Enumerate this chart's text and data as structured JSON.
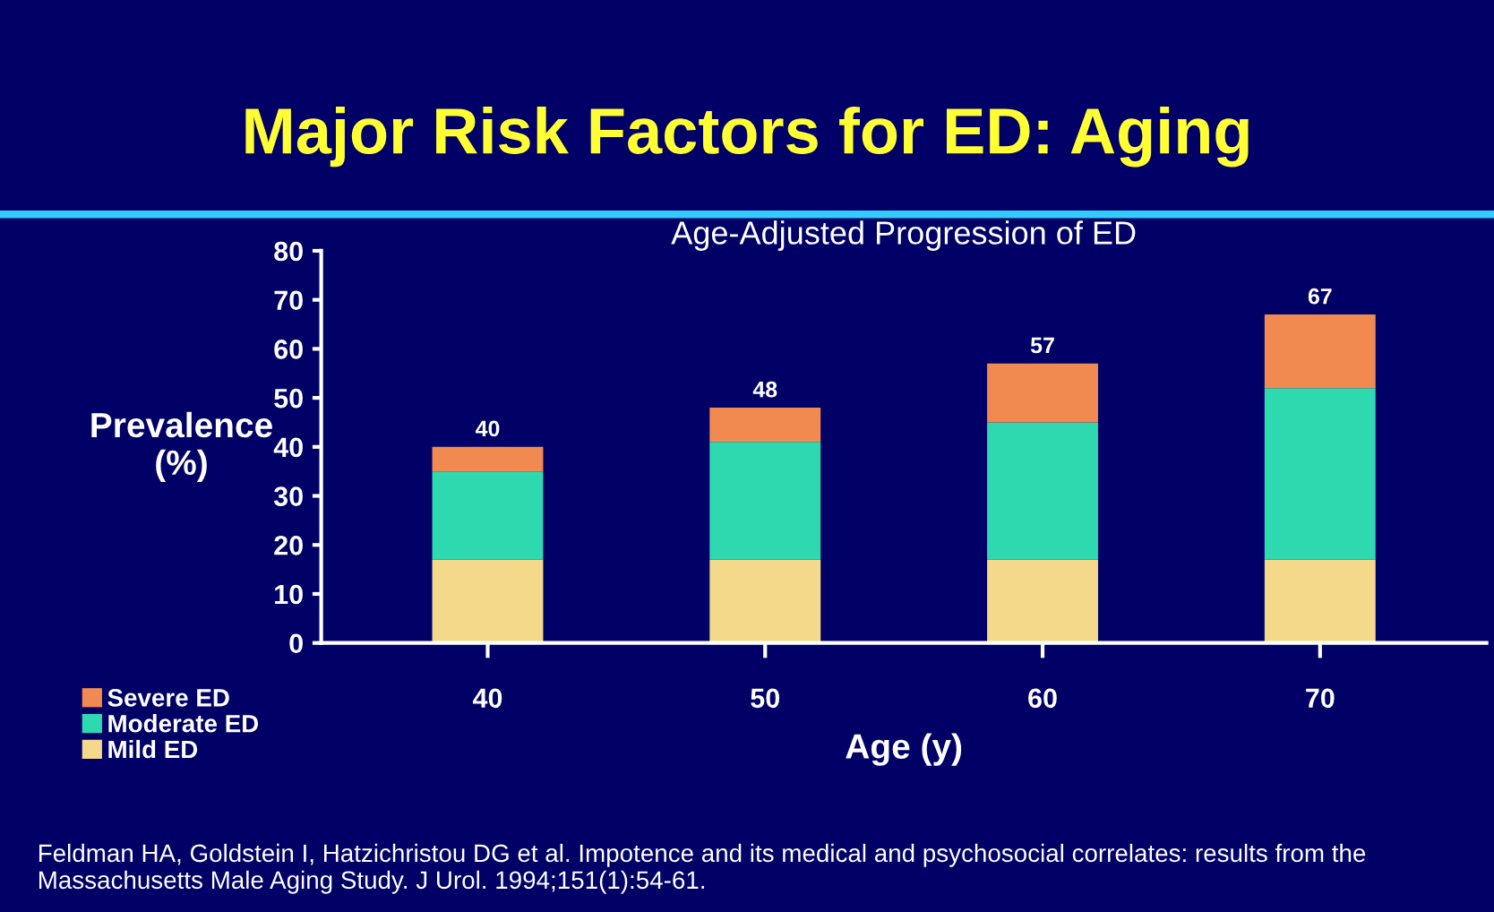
{
  "chart_data": {
    "type": "bar",
    "stacked": true,
    "title": "Major Risk Factors for ED: Aging",
    "subtitle": "Age-Adjusted Progression of ED",
    "xlabel": "Age (y)",
    "ylabel": "Prevalence\n(%)",
    "categories": [
      "40",
      "50",
      "60",
      "70"
    ],
    "series": [
      {
        "name": "Mild ED",
        "color": "#f5d98a",
        "values": [
          17,
          17,
          17,
          17
        ]
      },
      {
        "name": "Moderate ED",
        "color": "#2fd9b0",
        "values": [
          18,
          24,
          28,
          35
        ]
      },
      {
        "name": "Severe ED",
        "color": "#f08a50",
        "values": [
          5,
          7,
          12,
          15
        ]
      }
    ],
    "totals": [
      "40",
      "48",
      "57",
      "67"
    ],
    "ylim": [
      0,
      80
    ],
    "yticks": [
      0,
      10,
      20,
      30,
      40,
      50,
      60,
      70,
      80
    ],
    "grid": false,
    "legend": "bottom left",
    "annotations": [
      "Feldman HA, Goldstein I, Hatzichristou DG et al. Impotence and its medical and psychosocial correlates: results from the Massachusetts Male Aging Study. J Urol. 1994;151(1):54-61."
    ]
  }
}
